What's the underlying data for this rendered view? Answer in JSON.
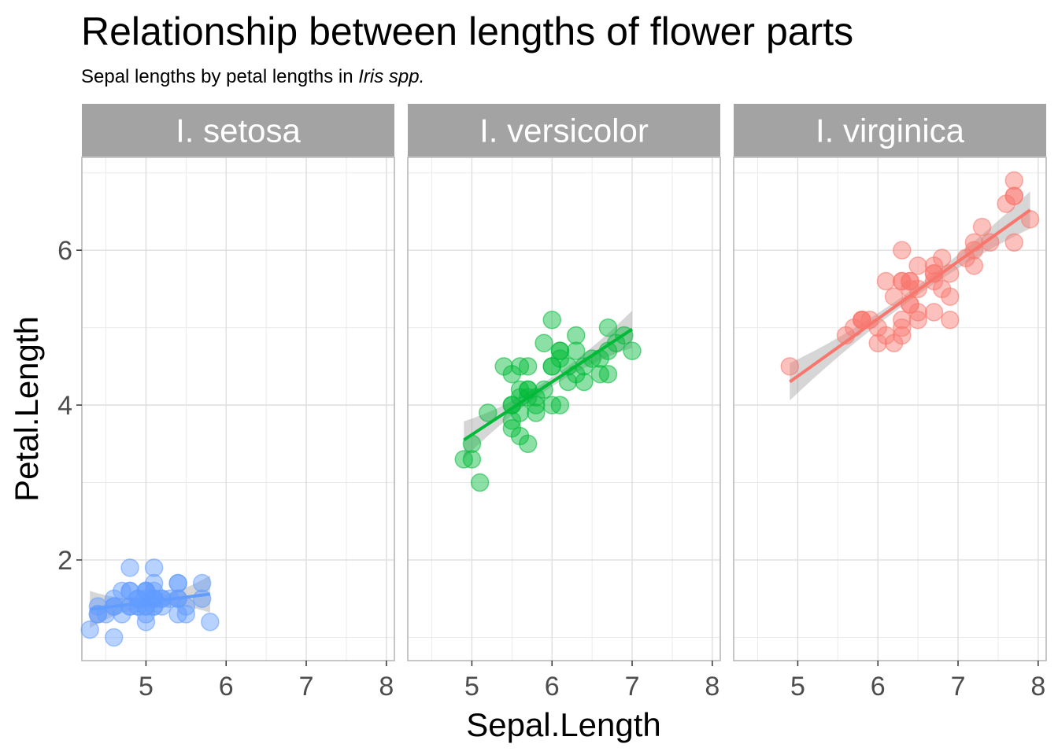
{
  "chart_data": {
    "type": "scatter",
    "title": "Relationship between lengths of flower parts",
    "subtitle_prefix": "Sepal lengths by petal lengths in ",
    "subtitle_italic": "Iris spp.",
    "xlabel": "Sepal.Length",
    "ylabel": "Petal.Length",
    "xlim": [
      4.2,
      8.1
    ],
    "ylim": [
      0.7,
      7.2
    ],
    "x_ticks": [
      5,
      6,
      7,
      8
    ],
    "y_ticks": [
      2,
      4,
      6
    ],
    "grid": true,
    "legend": "none",
    "facets": [
      {
        "label": "I. setosa",
        "color": "#619CFF",
        "fit": {
          "x": [
            4.3,
            5.8
          ],
          "y": [
            1.36,
            1.56
          ]
        },
        "points": [
          [
            5.1,
            1.4
          ],
          [
            4.9,
            1.4
          ],
          [
            4.7,
            1.3
          ],
          [
            4.6,
            1.5
          ],
          [
            5.0,
            1.4
          ],
          [
            5.4,
            1.7
          ],
          [
            4.6,
            1.4
          ],
          [
            5.0,
            1.5
          ],
          [
            4.4,
            1.4
          ],
          [
            4.9,
            1.5
          ],
          [
            5.4,
            1.5
          ],
          [
            4.8,
            1.6
          ],
          [
            4.8,
            1.4
          ],
          [
            4.3,
            1.1
          ],
          [
            5.8,
            1.2
          ],
          [
            5.7,
            1.5
          ],
          [
            5.4,
            1.3
          ],
          [
            5.1,
            1.4
          ],
          [
            5.7,
            1.7
          ],
          [
            5.1,
            1.5
          ],
          [
            5.4,
            1.7
          ],
          [
            5.1,
            1.5
          ],
          [
            4.6,
            1.0
          ],
          [
            5.1,
            1.7
          ],
          [
            4.8,
            1.9
          ],
          [
            5.0,
            1.6
          ],
          [
            5.0,
            1.6
          ],
          [
            5.2,
            1.5
          ],
          [
            5.2,
            1.4
          ],
          [
            4.7,
            1.6
          ],
          [
            4.8,
            1.6
          ],
          [
            5.4,
            1.5
          ],
          [
            5.2,
            1.5
          ],
          [
            5.5,
            1.4
          ],
          [
            4.9,
            1.5
          ],
          [
            5.0,
            1.2
          ],
          [
            5.5,
            1.3
          ],
          [
            4.9,
            1.4
          ],
          [
            4.4,
            1.3
          ],
          [
            5.1,
            1.5
          ],
          [
            5.0,
            1.3
          ],
          [
            4.5,
            1.3
          ],
          [
            4.4,
            1.3
          ],
          [
            5.0,
            1.6
          ],
          [
            5.1,
            1.9
          ],
          [
            4.8,
            1.4
          ],
          [
            5.1,
            1.6
          ],
          [
            4.6,
            1.4
          ],
          [
            5.3,
            1.5
          ],
          [
            5.0,
            1.4
          ]
        ]
      },
      {
        "label": "I. versicolor",
        "color": "#00BA38",
        "fit": {
          "x": [
            4.9,
            7.0
          ],
          "y": [
            3.55,
            4.98
          ]
        },
        "points": [
          [
            7.0,
            4.7
          ],
          [
            6.4,
            4.5
          ],
          [
            6.9,
            4.9
          ],
          [
            5.5,
            4.0
          ],
          [
            6.5,
            4.6
          ],
          [
            5.7,
            4.5
          ],
          [
            6.3,
            4.7
          ],
          [
            4.9,
            3.3
          ],
          [
            6.6,
            4.6
          ],
          [
            5.2,
            3.9
          ],
          [
            5.0,
            3.5
          ],
          [
            5.9,
            4.2
          ],
          [
            6.0,
            4.0
          ],
          [
            6.1,
            4.7
          ],
          [
            5.6,
            3.6
          ],
          [
            6.7,
            4.4
          ],
          [
            5.6,
            4.5
          ],
          [
            5.8,
            4.1
          ],
          [
            6.2,
            4.5
          ],
          [
            5.6,
            3.9
          ],
          [
            5.9,
            4.8
          ],
          [
            6.1,
            4.0
          ],
          [
            6.3,
            4.9
          ],
          [
            6.1,
            4.7
          ],
          [
            6.4,
            4.3
          ],
          [
            6.6,
            4.4
          ],
          [
            6.8,
            4.8
          ],
          [
            6.7,
            5.0
          ],
          [
            6.0,
            4.5
          ],
          [
            5.7,
            3.5
          ],
          [
            5.5,
            3.8
          ],
          [
            5.5,
            3.7
          ],
          [
            5.8,
            3.9
          ],
          [
            6.0,
            5.1
          ],
          [
            5.4,
            4.5
          ],
          [
            6.0,
            4.5
          ],
          [
            6.7,
            4.7
          ],
          [
            6.3,
            4.4
          ],
          [
            5.6,
            4.1
          ],
          [
            5.5,
            4.0
          ],
          [
            5.5,
            4.4
          ],
          [
            6.1,
            4.6
          ],
          [
            5.8,
            4.0
          ],
          [
            5.0,
            3.3
          ],
          [
            5.6,
            4.2
          ],
          [
            5.7,
            4.2
          ],
          [
            5.7,
            4.2
          ],
          [
            6.2,
            4.3
          ],
          [
            5.1,
            3.0
          ],
          [
            5.7,
            4.1
          ]
        ]
      },
      {
        "label": "I. virginica",
        "color": "#F8766D",
        "fit": {
          "x": [
            4.9,
            7.9
          ],
          "y": [
            4.3,
            6.52
          ]
        },
        "points": [
          [
            6.3,
            6.0
          ],
          [
            5.8,
            5.1
          ],
          [
            7.1,
            5.9
          ],
          [
            6.3,
            5.6
          ],
          [
            6.5,
            5.8
          ],
          [
            7.6,
            6.6
          ],
          [
            4.9,
            4.5
          ],
          [
            7.3,
            6.3
          ],
          [
            6.7,
            5.8
          ],
          [
            7.2,
            6.1
          ],
          [
            6.5,
            5.1
          ],
          [
            6.4,
            5.3
          ],
          [
            6.8,
            5.5
          ],
          [
            5.7,
            5.0
          ],
          [
            5.8,
            5.1
          ],
          [
            6.4,
            5.3
          ],
          [
            6.5,
            5.5
          ],
          [
            7.7,
            6.7
          ],
          [
            7.7,
            6.9
          ],
          [
            6.0,
            5.0
          ],
          [
            6.9,
            5.7
          ],
          [
            5.6,
            4.9
          ],
          [
            7.7,
            6.7
          ],
          [
            6.3,
            4.9
          ],
          [
            6.7,
            5.7
          ],
          [
            7.2,
            6.0
          ],
          [
            6.2,
            4.8
          ],
          [
            6.1,
            4.9
          ],
          [
            6.4,
            5.6
          ],
          [
            7.2,
            5.8
          ],
          [
            7.4,
            6.1
          ],
          [
            7.9,
            6.4
          ],
          [
            6.4,
            5.6
          ],
          [
            6.3,
            5.1
          ],
          [
            6.1,
            5.6
          ],
          [
            7.7,
            6.1
          ],
          [
            6.3,
            5.6
          ],
          [
            6.4,
            5.5
          ],
          [
            6.0,
            4.8
          ],
          [
            6.9,
            5.4
          ],
          [
            6.7,
            5.6
          ],
          [
            6.9,
            5.1
          ],
          [
            5.8,
            5.1
          ],
          [
            6.8,
            5.9
          ],
          [
            6.7,
            5.7
          ],
          [
            6.7,
            5.2
          ],
          [
            6.3,
            5.0
          ],
          [
            6.5,
            5.2
          ],
          [
            6.2,
            5.4
          ],
          [
            5.9,
            5.1
          ]
        ]
      }
    ]
  }
}
